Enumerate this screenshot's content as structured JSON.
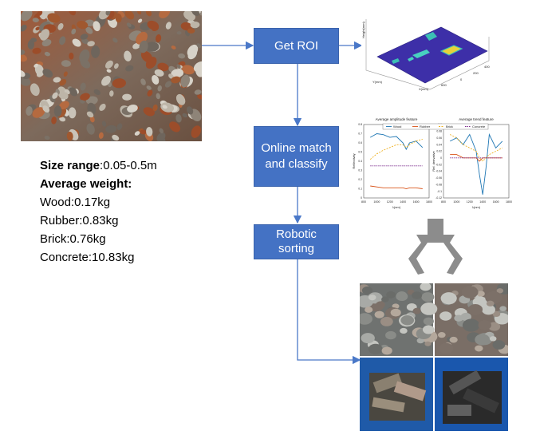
{
  "flow": {
    "steps": [
      "Get ROI",
      "Online match and classify",
      "Robotic sorting"
    ]
  },
  "info": {
    "size_label": "Size range",
    "size_value": ":0.05-0.5m",
    "weight_heading": "Average weight:",
    "weights": [
      {
        "material": "Wood",
        "value": ":0.17kg"
      },
      {
        "material": "Rubber",
        "value": ":0.83kg"
      },
      {
        "material": "Brick",
        "value": ":0.76kg"
      },
      {
        "material": "Concrete",
        "value": ":10.83kg"
      }
    ]
  },
  "chart_data": [
    {
      "type": "line",
      "title": "Average amplitude feature",
      "xlabel": "λ(nm)",
      "ylabel": "Reflectivity",
      "xlim": [
        800,
        1800
      ],
      "ylim": [
        0,
        0.8
      ],
      "xticks": [
        "800",
        "1000",
        "1200",
        "1400",
        "1600",
        "1800"
      ],
      "yticks": [
        "0",
        "0.1",
        "0.2",
        "0.3",
        "0.4",
        "0.5",
        "0.6",
        "0.7",
        "0.8"
      ],
      "legend": [
        "Wood",
        "Rubber",
        "Brick",
        "Concrete"
      ],
      "x": [
        900,
        1000,
        1100,
        1200,
        1300,
        1400,
        1450,
        1500,
        1600,
        1700
      ],
      "series": [
        {
          "name": "Wood",
          "color": "#1f77b4",
          "values": [
            0.66,
            0.7,
            0.69,
            0.66,
            0.67,
            0.6,
            0.53,
            0.6,
            0.62,
            0.55
          ]
        },
        {
          "name": "Rubber",
          "color": "#d95319",
          "values": [
            0.13,
            0.12,
            0.11,
            0.11,
            0.11,
            0.11,
            0.1,
            0.11,
            0.11,
            0.1
          ]
        },
        {
          "name": "Brick",
          "color": "#edb120",
          "values": [
            0.42,
            0.48,
            0.52,
            0.55,
            0.58,
            0.58,
            0.55,
            0.58,
            0.62,
            0.64
          ]
        },
        {
          "name": "Concrete",
          "color": "#7e2f8e",
          "values": [
            0.35,
            0.35,
            0.35,
            0.35,
            0.35,
            0.35,
            0.35,
            0.35,
            0.35,
            0.35
          ]
        }
      ]
    },
    {
      "type": "line",
      "title": "Average trend feature",
      "xlabel": "λ(nm)",
      "ylabel": "Ref. derivative",
      "xlim": [
        800,
        1800
      ],
      "ylim": [
        -0.12,
        0.1
      ],
      "xticks": [
        "800",
        "1000",
        "1200",
        "1400",
        "1600",
        "1800"
      ],
      "yticks": [
        "-0.12",
        "-0.1",
        "-0.08",
        "-0.06",
        "-0.04",
        "-0.02",
        "0",
        "0.02",
        "0.04",
        "0.06",
        "0.08",
        "0.1"
      ],
      "x": [
        900,
        1000,
        1100,
        1200,
        1300,
        1350,
        1400,
        1450,
        1500,
        1600,
        1700
      ],
      "series": [
        {
          "name": "Wood",
          "color": "#1f77b4",
          "values": [
            0.05,
            0.06,
            0.04,
            0.07,
            0.02,
            -0.05,
            -0.11,
            -0.03,
            0.07,
            0.03,
            0.05
          ]
        },
        {
          "name": "Rubber",
          "color": "#d95319",
          "values": [
            0.01,
            0.01,
            0.0,
            0.0,
            0.0,
            -0.01,
            0.0,
            0.0,
            0.0,
            0.0,
            0.0
          ]
        },
        {
          "name": "Brick",
          "color": "#edb120",
          "values": [
            0.07,
            0.06,
            0.04,
            0.03,
            0.02,
            0.0,
            -0.01,
            0.0,
            0.01,
            0.02,
            0.03
          ]
        },
        {
          "name": "Concrete",
          "color": "#7e2f8e",
          "values": [
            0.0,
            0.0,
            0.0,
            0.0,
            0.0,
            0.0,
            0.0,
            0.0,
            0.0,
            0.0,
            0.0
          ]
        }
      ]
    }
  ],
  "surface_plot": {
    "axis_labels": [
      "Height(mm)",
      "Y(mm)",
      "X(mm)"
    ],
    "ticks": [
      "0",
      "200",
      "400",
      "600"
    ]
  },
  "colors": {
    "box": "#4472c4",
    "arrow": "#4a78c8",
    "gripper": "#8c8c8c",
    "surface": "#3d2fa8"
  }
}
